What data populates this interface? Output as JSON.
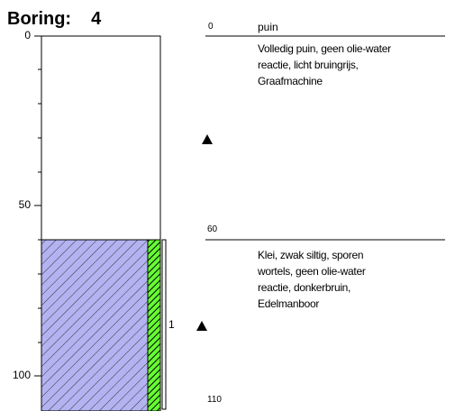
{
  "boring": {
    "label": "Boring:",
    "number": "4"
  },
  "axis": {
    "ticks": [
      "0",
      "50",
      "100"
    ],
    "values": [
      0,
      50,
      100
    ]
  },
  "layers": [
    {
      "top": 0,
      "bottom": 60,
      "top_label": "0",
      "name": "puin",
      "description": [
        "Volledig puin, geen olie-water",
        "reactie, licht bruingrijs,",
        "Graafmachine"
      ]
    },
    {
      "top": 60,
      "bottom": 110,
      "top_label": "60",
      "name": "",
      "description": [
        "Klei, zwak siltig, sporen",
        "wortels, geen olie-water",
        "reactie, donkerbruin,",
        "Edelmanboor"
      ]
    }
  ],
  "bottom_label": "110",
  "sample": {
    "label": "1",
    "top": 60,
    "bottom": 110
  },
  "colors": {
    "clay_fill": "#b3b3f2",
    "strip_fill": "#66ff33",
    "line": "#000000"
  },
  "markers": [
    "triangle-marker",
    "triangle-marker"
  ]
}
